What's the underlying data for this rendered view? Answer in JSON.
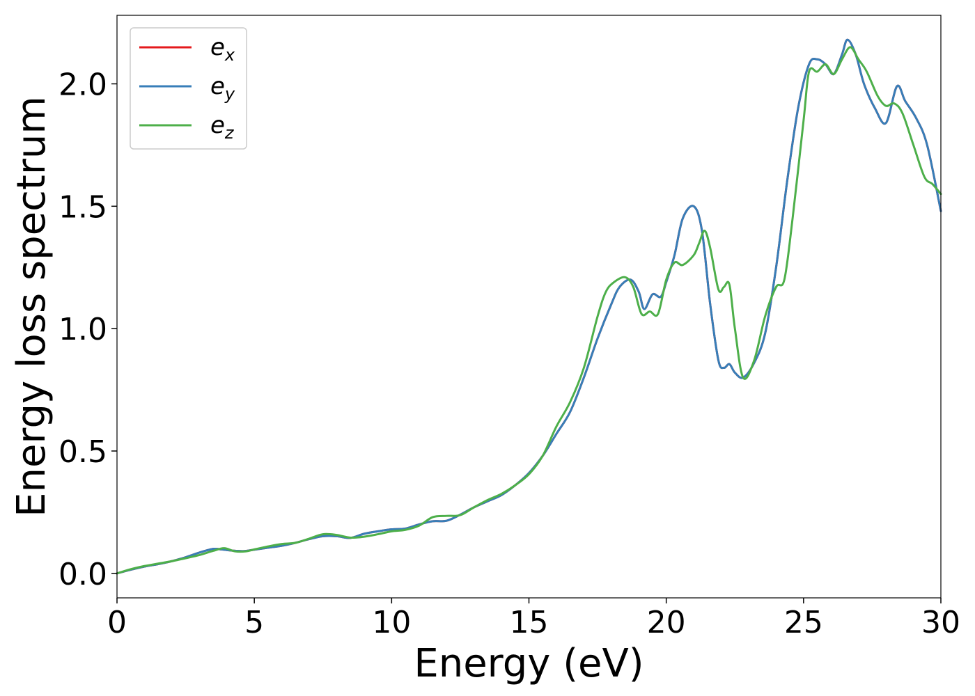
{
  "chart_data": {
    "type": "line",
    "xlabel": "Energy (eV)",
    "ylabel": "Energy loss spectrum",
    "xlim": [
      0,
      30
    ],
    "ylim": [
      -0.1,
      2.28
    ],
    "xticks": [
      0,
      5,
      10,
      15,
      20,
      25,
      30
    ],
    "xtick_labels": [
      "0",
      "5",
      "10",
      "15",
      "20",
      "25",
      "30"
    ],
    "yticks": [
      0.0,
      0.5,
      1.0,
      1.5,
      2.0
    ],
    "ytick_labels": [
      "0.0",
      "0.5",
      "1.0",
      "1.5",
      "2.0"
    ],
    "grid": false,
    "legend_position": "top-left",
    "series": [
      {
        "name": "ex",
        "label_main": "e",
        "label_sub": "x",
        "color": "#e41a1c",
        "x": [
          0,
          0.5,
          1,
          1.5,
          2,
          2.5,
          3,
          3.5,
          3.8,
          4.2,
          4.6,
          5,
          5.5,
          6,
          6.5,
          7,
          7.5,
          8,
          8.5,
          9,
          9.5,
          10,
          10.5,
          11,
          11.5,
          12,
          12.5,
          13,
          13.5,
          14,
          14.5,
          15,
          15.5,
          16,
          16.5,
          17,
          17.5,
          18,
          18.3,
          18.7,
          19,
          19.2,
          19.5,
          19.8,
          20,
          20.3,
          20.6,
          21,
          21.3,
          21.6,
          21.9,
          22.1,
          22.3,
          22.5,
          22.8,
          23.2,
          23.6,
          24,
          24.4,
          24.8,
          25.2,
          25.5,
          25.8,
          26.1,
          26.4,
          26.6,
          26.9,
          27.2,
          27.6,
          28,
          28.4,
          28.7,
          29.1,
          29.5,
          30
        ],
        "y": [
          0,
          0.015,
          0.028,
          0.038,
          0.05,
          0.066,
          0.085,
          0.1,
          0.098,
          0.093,
          0.091,
          0.097,
          0.105,
          0.113,
          0.125,
          0.14,
          0.152,
          0.152,
          0.145,
          0.162,
          0.172,
          0.18,
          0.183,
          0.2,
          0.213,
          0.215,
          0.24,
          0.27,
          0.295,
          0.32,
          0.36,
          0.41,
          0.48,
          0.57,
          0.66,
          0.8,
          0.96,
          1.1,
          1.17,
          1.2,
          1.15,
          1.08,
          1.14,
          1.13,
          1.19,
          1.3,
          1.45,
          1.5,
          1.4,
          1.1,
          0.87,
          0.84,
          0.855,
          0.82,
          0.8,
          0.86,
          0.98,
          1.25,
          1.6,
          1.9,
          2.08,
          2.1,
          2.08,
          2.04,
          2.12,
          2.18,
          2.12,
          2.0,
          1.9,
          1.84,
          1.99,
          1.93,
          1.86,
          1.75,
          1.48
        ]
      },
      {
        "name": "ey",
        "label_main": "e",
        "label_sub": "y",
        "color": "#377eb8",
        "x": [
          0,
          0.5,
          1,
          1.5,
          2,
          2.5,
          3,
          3.5,
          3.8,
          4.2,
          4.6,
          5,
          5.5,
          6,
          6.5,
          7,
          7.5,
          8,
          8.5,
          9,
          9.5,
          10,
          10.5,
          11,
          11.5,
          12,
          12.5,
          13,
          13.5,
          14,
          14.5,
          15,
          15.5,
          16,
          16.5,
          17,
          17.5,
          18,
          18.3,
          18.7,
          19,
          19.2,
          19.5,
          19.8,
          20,
          20.3,
          20.6,
          21,
          21.3,
          21.6,
          21.9,
          22.1,
          22.3,
          22.5,
          22.8,
          23.2,
          23.6,
          24,
          24.4,
          24.8,
          25.2,
          25.5,
          25.8,
          26.1,
          26.4,
          26.6,
          26.9,
          27.2,
          27.6,
          28,
          28.4,
          28.7,
          29.1,
          29.5,
          30
        ],
        "y": [
          0,
          0.015,
          0.028,
          0.038,
          0.05,
          0.066,
          0.085,
          0.1,
          0.098,
          0.093,
          0.091,
          0.097,
          0.105,
          0.113,
          0.125,
          0.14,
          0.152,
          0.152,
          0.145,
          0.162,
          0.172,
          0.18,
          0.183,
          0.2,
          0.213,
          0.215,
          0.24,
          0.27,
          0.295,
          0.32,
          0.36,
          0.41,
          0.48,
          0.57,
          0.66,
          0.8,
          0.96,
          1.1,
          1.17,
          1.2,
          1.15,
          1.08,
          1.14,
          1.13,
          1.19,
          1.3,
          1.45,
          1.5,
          1.4,
          1.1,
          0.87,
          0.84,
          0.855,
          0.82,
          0.8,
          0.86,
          0.98,
          1.25,
          1.6,
          1.9,
          2.08,
          2.1,
          2.08,
          2.04,
          2.12,
          2.18,
          2.12,
          2.0,
          1.9,
          1.84,
          1.99,
          1.93,
          1.86,
          1.75,
          1.48
        ]
      },
      {
        "name": "ez",
        "label_main": "e",
        "label_sub": "z",
        "color": "#4daf4a",
        "x": [
          0,
          0.5,
          1,
          1.5,
          2,
          2.5,
          3,
          3.5,
          3.9,
          4.3,
          4.7,
          5,
          5.5,
          6,
          6.5,
          7,
          7.5,
          8,
          8.5,
          9,
          9.5,
          10,
          10.5,
          11,
          11.5,
          12,
          12.5,
          13,
          13.5,
          14,
          14.5,
          15,
          15.5,
          16,
          16.5,
          17,
          17.5,
          17.8,
          18.1,
          18.5,
          18.8,
          19.1,
          19.4,
          19.7,
          20,
          20.3,
          20.6,
          21,
          21.2,
          21.4,
          21.6,
          21.9,
          22.1,
          22.3,
          22.5,
          22.8,
          23.2,
          23.6,
          24,
          24.3,
          24.6,
          25,
          25.2,
          25.5,
          25.8,
          26.1,
          26.4,
          26.7,
          27,
          27.3,
          27.7,
          28,
          28.3,
          28.6,
          29,
          29.4,
          29.7,
          30
        ],
        "y": [
          0,
          0.017,
          0.03,
          0.04,
          0.05,
          0.062,
          0.075,
          0.092,
          0.103,
          0.09,
          0.09,
          0.098,
          0.11,
          0.12,
          0.125,
          0.142,
          0.16,
          0.157,
          0.146,
          0.15,
          0.16,
          0.172,
          0.178,
          0.195,
          0.23,
          0.235,
          0.238,
          0.27,
          0.3,
          0.325,
          0.36,
          0.405,
          0.48,
          0.6,
          0.7,
          0.84,
          1.05,
          1.15,
          1.19,
          1.21,
          1.17,
          1.06,
          1.07,
          1.06,
          1.2,
          1.27,
          1.26,
          1.3,
          1.35,
          1.4,
          1.33,
          1.16,
          1.17,
          1.18,
          1.0,
          0.8,
          0.87,
          1.05,
          1.17,
          1.2,
          1.45,
          1.85,
          2.05,
          2.05,
          2.08,
          2.04,
          2.1,
          2.15,
          2.1,
          2.05,
          1.95,
          1.91,
          1.92,
          1.88,
          1.75,
          1.62,
          1.59,
          1.55
        ]
      }
    ]
  }
}
